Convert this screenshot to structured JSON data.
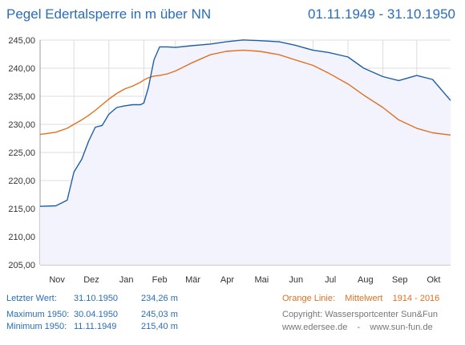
{
  "header": {
    "title": "Pegel Edertalsperre in m über NN",
    "range": "01.11.1949 - 31.10.1950"
  },
  "stats": {
    "last": {
      "label": "Letzter Wert:",
      "date": "31.10.1950",
      "value": "234,26 m"
    },
    "max": {
      "label": "Maximum 1950:",
      "date": "30.04.1950",
      "value": "245,03 m"
    },
    "min": {
      "label": "Minimum  1950:",
      "date": "11.11.1949",
      "value": "215,40 m"
    }
  },
  "legend": {
    "orange_label": "Orange Linie:",
    "orange_desc": "Mittelwert",
    "orange_years": "1914 - 2016"
  },
  "copyright": {
    "line1": "Copyright: Wassersportcenter Sun&Fun",
    "line2": "www.edersee.de    -    www.sun-fun.de"
  },
  "chart_data": {
    "type": "line",
    "x": [
      "1949-11-01",
      "1949-11-15",
      "1949-11-25",
      "1949-12-01",
      "1949-12-08",
      "1949-12-14",
      "1949-12-20",
      "1949-12-26",
      "1950-01-01",
      "1950-01-08",
      "1950-01-15",
      "1950-01-22",
      "1950-01-29",
      "1950-02-01",
      "1950-02-05",
      "1950-02-10",
      "1950-02-15",
      "1950-02-22",
      "1950-03-01",
      "1950-03-15",
      "1950-04-01",
      "1950-04-15",
      "1950-04-30",
      "1950-05-15",
      "1950-06-01",
      "1950-06-15",
      "1950-07-01",
      "1950-07-15",
      "1950-08-01",
      "1950-08-15",
      "1950-09-01",
      "1950-09-15",
      "1950-10-01",
      "1950-10-15",
      "1950-10-31"
    ],
    "series": [
      {
        "color": "#1f5fa8",
        "values": [
          215.4,
          215.5,
          216.5,
          221.5,
          223.8,
          227.0,
          229.5,
          229.8,
          231.8,
          233.0,
          233.3,
          233.5,
          233.5,
          233.8,
          236.5,
          241.5,
          243.8,
          243.8,
          243.7,
          244.0,
          244.3,
          244.7,
          245.03,
          244.9,
          244.7,
          244.1,
          243.2,
          242.8,
          242.0,
          240.0,
          238.5,
          237.8,
          238.7,
          238.0,
          234.26
        ]
      },
      {
        "name": "Mittelwert",
        "color": "#e07020",
        "values": [
          228.2,
          228.6,
          229.3,
          230.0,
          230.8,
          231.6,
          232.5,
          233.5,
          234.5,
          235.5,
          236.3,
          236.8,
          237.5,
          237.9,
          238.3,
          238.6,
          238.7,
          239.0,
          239.5,
          240.9,
          242.4,
          243.0,
          243.2,
          243.0,
          242.4,
          241.5,
          240.5,
          239.1,
          237.2,
          235.2,
          233.0,
          230.8,
          229.3,
          228.5,
          228.1
        ]
      }
    ],
    "ylim": [
      205,
      245
    ],
    "yticks": [
      "205,00",
      "210,00",
      "215,00",
      "220,00",
      "225,00",
      "230,00",
      "235,00",
      "240,00",
      "245,00"
    ],
    "xtick_labels": [
      "Nov",
      "Dez",
      "Jan",
      "Feb",
      "Mär",
      "Apr",
      "Mai",
      "Jun",
      "Jul",
      "Aug",
      "Sep",
      "Okt"
    ],
    "grid": true,
    "area_fill": "#f2f3fc"
  }
}
